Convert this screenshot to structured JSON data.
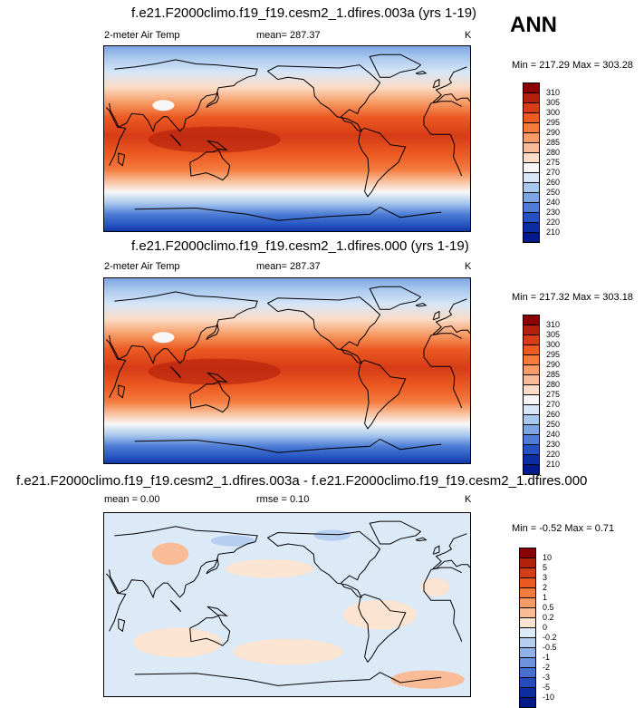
{
  "season": "ANN",
  "panels": [
    {
      "title": "f.e21.F2000climo.f19_f19.cesm2_1.dfires.003a (yrs 1-19)",
      "left_label": "2-meter Air Temp",
      "center_label": "mean= 287.37",
      "units": "K",
      "minmax": "Min = 217.29 Max = 303.28",
      "type": "absolute"
    },
    {
      "title": "f.e21.F2000climo.f19_f19.cesm2_1.dfires.000 (yrs 1-19)",
      "left_label": "2-meter Air Temp",
      "center_label": "mean= 287.37",
      "units": "K",
      "minmax": "Min = 217.32 Max = 303.18",
      "type": "absolute"
    },
    {
      "title": "f.e21.F2000climo.f19_f19.cesm2_1.dfires.003a - f.e21.F2000climo.f19_f19.cesm2_1.dfires.000",
      "left_label": "mean =   0.00",
      "center_label": "rmse =   0.10",
      "units": "K",
      "minmax": "Min =  -0.52 Max =   0.71",
      "type": "difference"
    }
  ],
  "colorbar_abs": {
    "labels": [
      "310",
      "305",
      "300",
      "295",
      "290",
      "285",
      "280",
      "275",
      "270",
      "260",
      "250",
      "240",
      "230",
      "220",
      "210"
    ],
    "colors": [
      "#8b0000",
      "#b3200c",
      "#d63c16",
      "#ec5a22",
      "#f47b3e",
      "#f79c66",
      "#f9bc96",
      "#fbdcc6",
      "#f7f7f7",
      "#d6e6f6",
      "#a9c8ee",
      "#7ba5e3",
      "#4d7dd5",
      "#2452c0",
      "#0a2ea0",
      "#001a8a"
    ]
  },
  "colorbar_diff": {
    "labels": [
      "10",
      "5",
      "3",
      "2",
      "1",
      "0.5",
      "0.2",
      "0",
      "-0.2",
      "-0.5",
      "-1",
      "-2",
      "-3",
      "-5",
      "-10"
    ],
    "colors": [
      "#8b0000",
      "#b3200c",
      "#d63c16",
      "#ec5a22",
      "#f47b3e",
      "#f79c66",
      "#f9bc96",
      "#fbe4d2",
      "#dce9f7",
      "#b6cff1",
      "#8fb2e8",
      "#6a93dc",
      "#466fd0",
      "#254cbc",
      "#0a2ea0",
      "#001a8a"
    ]
  }
}
